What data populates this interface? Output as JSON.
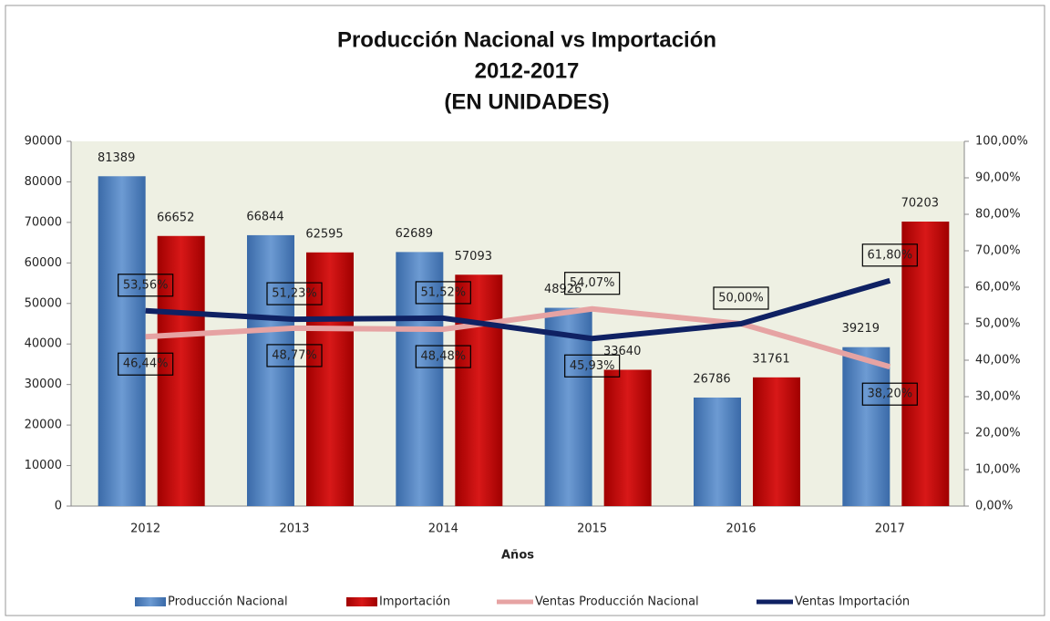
{
  "chart_data": {
    "type": "bar_line",
    "title": "Producción Nacional vs Importación",
    "subtitle": "2012-2017",
    "subtitle2": "(EN UNIDADES)",
    "x_label": "Años",
    "categories": [
      "2012",
      "2013",
      "2014",
      "2015",
      "2016",
      "2017"
    ],
    "series": [
      {
        "name": "Producción Nacional",
        "type": "bar",
        "color": "#4f81bd",
        "values": [
          81389,
          66844,
          62689,
          48926,
          26786,
          39219
        ]
      },
      {
        "name": "Importación",
        "type": "bar",
        "color": "#c00000",
        "values": [
          66652,
          62595,
          57093,
          33640,
          31761,
          70203
        ]
      },
      {
        "name": "Ventas Producción Nacional",
        "type": "line",
        "axis": "y2",
        "color": "#e6a3a3",
        "values": [
          46.44,
          48.77,
          48.48,
          54.07,
          50.0,
          38.2
        ],
        "value_labels": [
          "46,44%",
          "48,77%",
          "48,48%",
          "54,07%",
          null,
          "38,20%"
        ]
      },
      {
        "name": "Ventas Importación",
        "type": "line",
        "axis": "y2",
        "color": "#0f2163",
        "values": [
          53.56,
          51.23,
          51.52,
          45.93,
          50.0,
          61.8
        ],
        "value_labels": [
          "53,56%",
          "51,23%",
          "51,52%",
          "45,93%",
          "50,00%",
          "61,80%"
        ]
      }
    ],
    "ylim": [
      0,
      90000
    ],
    "yticks": [
      0,
      10000,
      20000,
      30000,
      40000,
      50000,
      60000,
      70000,
      80000,
      90000
    ],
    "y2lim": [
      0,
      100
    ],
    "y2ticks": [
      {
        "value": 0,
        "label": "0,00%"
      },
      {
        "value": 10,
        "label": "10,00%"
      },
      {
        "value": 20,
        "label": "20,00%"
      },
      {
        "value": 30,
        "label": "30,00%"
      },
      {
        "value": 40,
        "label": "40,00%"
      },
      {
        "value": 50,
        "label": "50,00%"
      },
      {
        "value": 60,
        "label": "60,00%"
      },
      {
        "value": 70,
        "label": "70,00%"
      },
      {
        "value": 80,
        "label": "80,00%"
      },
      {
        "value": 90,
        "label": "90,00%"
      },
      {
        "value": 100,
        "label": "100,00%"
      }
    ],
    "legend": "bottom"
  }
}
